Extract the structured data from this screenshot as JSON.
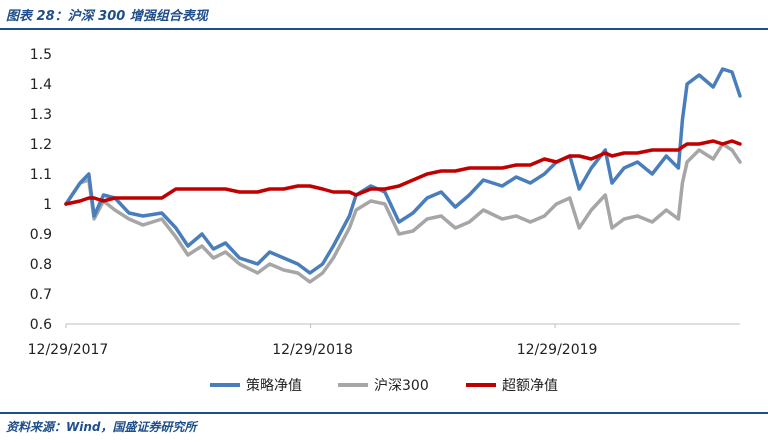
{
  "figure": {
    "title": "图表 28：沪深 300 增强组合表现",
    "source": "资料来源：Wind，国盛证券研究所"
  },
  "colors": {
    "header": "#1f4e8c",
    "axis": "#bfbfbf"
  },
  "chart_data": {
    "type": "line",
    "title": "",
    "xlabel": "",
    "ylabel": "",
    "ylim": [
      0.6,
      1.5
    ],
    "yticks": [
      "0.6",
      "0.7",
      "0.8",
      "0.9",
      "1",
      "1.1",
      "1.2",
      "1.3",
      "1.4",
      "1.5"
    ],
    "xticks": [
      "12/29/2017",
      "12/29/2018",
      "12/29/2019"
    ],
    "x_range": [
      "2017-12-29",
      "2020-09-30"
    ],
    "grid": false,
    "legend_position": "bottom",
    "x": [
      "2017-12-29",
      "2018-01-19",
      "2018-02-01",
      "2018-02-09",
      "2018-02-23",
      "2018-03-12",
      "2018-04-02",
      "2018-04-23",
      "2018-05-21",
      "2018-06-11",
      "2018-06-29",
      "2018-07-20",
      "2018-08-06",
      "2018-08-24",
      "2018-09-14",
      "2018-10-11",
      "2018-10-29",
      "2018-11-19",
      "2018-12-10",
      "2018-12-28",
      "2019-01-16",
      "2019-02-01",
      "2019-02-25",
      "2019-03-07",
      "2019-03-29",
      "2019-04-19",
      "2019-05-10",
      "2019-05-31",
      "2019-06-21",
      "2019-07-12",
      "2019-08-02",
      "2019-08-23",
      "2019-09-13",
      "2019-10-11",
      "2019-11-01",
      "2019-11-22",
      "2019-12-13",
      "2019-12-31",
      "2020-01-20",
      "2020-02-03",
      "2020-02-21",
      "2020-03-13",
      "2020-03-23",
      "2020-04-10",
      "2020-04-30",
      "2020-05-22",
      "2020-06-12",
      "2020-06-30",
      "2020-07-06",
      "2020-07-13",
      "2020-07-31",
      "2020-08-21",
      "2020-09-04",
      "2020-09-18",
      "2020-09-30"
    ],
    "series": [
      {
        "name": "策略净值",
        "color": "#4a7ebb",
        "values": [
          1.0,
          1.07,
          1.1,
          0.96,
          1.03,
          1.02,
          0.97,
          0.96,
          0.97,
          0.92,
          0.86,
          0.9,
          0.85,
          0.87,
          0.82,
          0.8,
          0.84,
          0.82,
          0.8,
          0.77,
          0.8,
          0.86,
          0.96,
          1.03,
          1.06,
          1.04,
          0.94,
          0.97,
          1.02,
          1.04,
          0.99,
          1.03,
          1.08,
          1.06,
          1.09,
          1.07,
          1.1,
          1.14,
          1.16,
          1.05,
          1.12,
          1.18,
          1.07,
          1.12,
          1.14,
          1.1,
          1.16,
          1.12,
          1.28,
          1.4,
          1.43,
          1.39,
          1.45,
          1.44,
          1.36
        ]
      },
      {
        "name": "沪深300",
        "color": "#a6a6a6",
        "values": [
          1.0,
          1.07,
          1.08,
          0.95,
          1.01,
          0.98,
          0.95,
          0.93,
          0.95,
          0.89,
          0.83,
          0.86,
          0.82,
          0.84,
          0.8,
          0.77,
          0.8,
          0.78,
          0.77,
          0.74,
          0.77,
          0.82,
          0.92,
          0.98,
          1.01,
          1.0,
          0.9,
          0.91,
          0.95,
          0.96,
          0.92,
          0.94,
          0.98,
          0.95,
          0.96,
          0.94,
          0.96,
          1.0,
          1.02,
          0.92,
          0.98,
          1.03,
          0.92,
          0.95,
          0.96,
          0.94,
          0.98,
          0.95,
          1.07,
          1.14,
          1.18,
          1.15,
          1.2,
          1.18,
          1.14
        ]
      },
      {
        "name": "超额净值",
        "color": "#c00000",
        "values": [
          1.0,
          1.01,
          1.02,
          1.02,
          1.01,
          1.02,
          1.02,
          1.02,
          1.02,
          1.05,
          1.05,
          1.05,
          1.05,
          1.05,
          1.04,
          1.04,
          1.05,
          1.05,
          1.06,
          1.06,
          1.05,
          1.04,
          1.04,
          1.03,
          1.05,
          1.05,
          1.06,
          1.08,
          1.1,
          1.11,
          1.11,
          1.12,
          1.12,
          1.12,
          1.13,
          1.13,
          1.15,
          1.14,
          1.16,
          1.16,
          1.15,
          1.17,
          1.16,
          1.17,
          1.17,
          1.18,
          1.18,
          1.18,
          1.19,
          1.2,
          1.2,
          1.21,
          1.2,
          1.21,
          1.2
        ]
      }
    ]
  }
}
